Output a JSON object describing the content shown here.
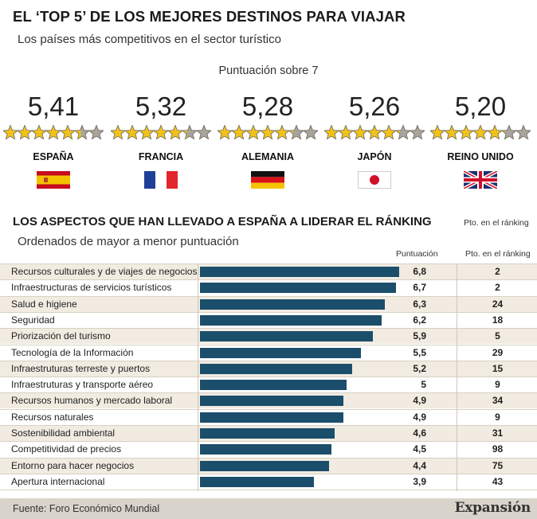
{
  "header": {
    "title": "EL ‘TOP 5’ DE LOS MEJORES DESTINOS PARA VIAJAR",
    "subtitle": "Los países más competitivos en el sector turístico",
    "score_label": "Puntuación sobre 7"
  },
  "colors": {
    "bar": "#1b4e6b",
    "star_fill": "#f1c21b",
    "star_empty": "#a9a59d",
    "row_alt": "#f1ebe1",
    "footer": "#d9d4cb"
  },
  "top5": [
    {
      "score": "5,41",
      "value": 5.41,
      "name": "ESPAÑA",
      "flag": "spain-flag-icon"
    },
    {
      "score": "5,32",
      "value": 5.32,
      "name": "FRANCIA",
      "flag": "france-flag-icon"
    },
    {
      "score": "5,28",
      "value": 5.28,
      "name": "ALEMANIA",
      "flag": "germany-flag-icon"
    },
    {
      "score": "5,26",
      "value": 5.26,
      "name": "JAPÓN",
      "flag": "japan-flag-icon"
    },
    {
      "score": "5,20",
      "value": 5.2,
      "name": "REINO UNIDO",
      "flag": "uk-flag-icon"
    }
  ],
  "section": {
    "title": "LOS ASPECTOS QUE HAN LLEVADO A ESPAÑA A LIDERAR EL RÁNKING",
    "subtitle": "Ordenados de mayor a menor puntuación",
    "right_top_label": "Pto. en el ránking",
    "col_score": "Puntuación",
    "col_rank": "Pto. en el ránking"
  },
  "chart_data": {
    "type": "bar",
    "orientation": "horizontal",
    "categories": [
      "Recursos culturales y de viajes de negocios",
      "Infraestructuras de servicios turísticos",
      "Salud e higiene",
      "Seguridad",
      "Priorización del turismo",
      "Tecnología de la Información",
      "Infraestruturas terreste y puertos",
      "Infraestruturas y transporte aéreo",
      "Recursos humanos y mercado laboral",
      "Recursos naturales",
      "Sostenibilidad ambiental",
      "Competitividad de precios",
      "Entorno para hacer negocios",
      "Apertura internacional"
    ],
    "values": [
      6.8,
      6.7,
      6.3,
      6.2,
      5.9,
      5.5,
      5.2,
      5,
      4.9,
      4.9,
      4.6,
      4.5,
      4.4,
      3.9
    ],
    "value_labels": [
      "6,8",
      "6,7",
      "6,3",
      "6,2",
      "5,9",
      "5,5",
      "5,2",
      "5",
      "4,9",
      "4,9",
      "4,6",
      "4,5",
      "4,4",
      "3,9"
    ],
    "rank": [
      "2",
      "2",
      "24",
      "18",
      "5",
      "29",
      "15",
      "9",
      "34",
      "9",
      "31",
      "98",
      "75",
      "43"
    ],
    "xlim": [
      0,
      6.8
    ]
  },
  "footer": {
    "source": "Fuente: Foro Económico Mundial",
    "logo": "Expansión"
  }
}
